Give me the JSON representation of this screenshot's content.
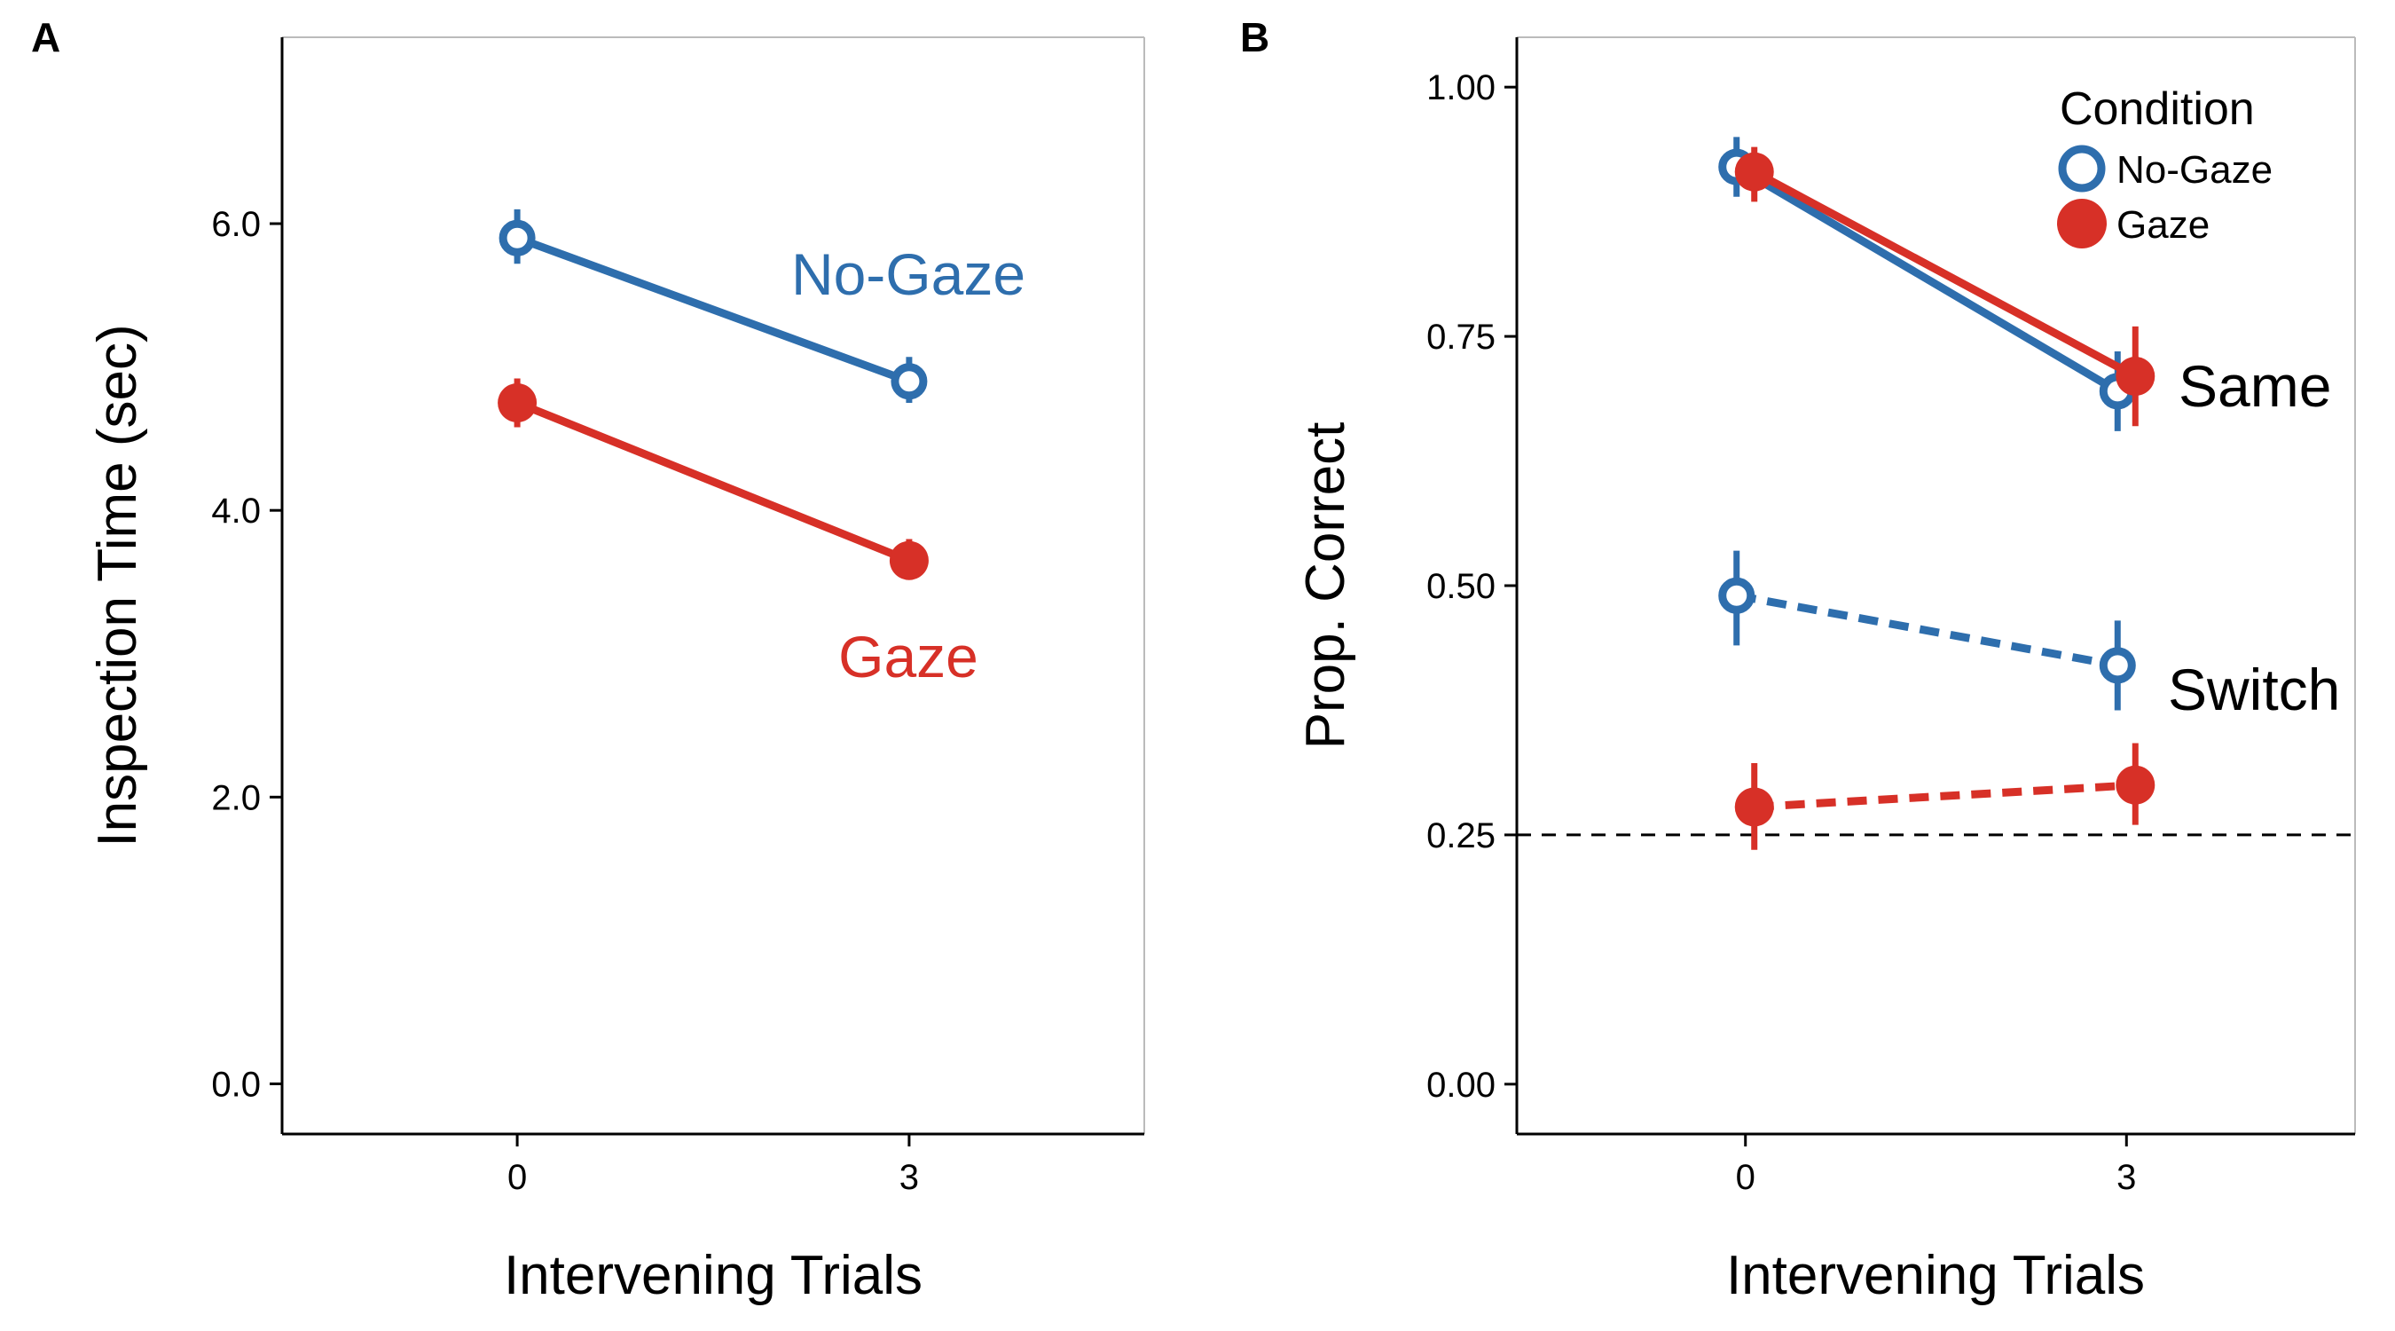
{
  "colors": {
    "no_gaze": "#2e6ead",
    "gaze": "#d73027",
    "axis": "#000000",
    "frame": "#bbbbbb"
  },
  "chart_data": [
    {
      "panel": "A",
      "type": "line",
      "x": [
        0,
        3
      ],
      "x_ticks": [
        "0",
        "3"
      ],
      "xlim": [
        -1.8,
        4.8
      ],
      "ylim": [
        -0.35,
        7.3
      ],
      "y_ticks": [
        "0.0",
        "2.0",
        "4.0",
        "6.0"
      ],
      "xlabel": "Intervening Trials",
      "ylabel": "Inspection Time (sec)",
      "grid": false,
      "series": [
        {
          "name": "No-Gaze",
          "color": "#2e6ead",
          "marker": "open-circle",
          "line": "solid",
          "values": [
            5.9,
            4.9
          ],
          "ci": [
            [
              5.72,
              6.1
            ],
            [
              4.75,
              5.07
            ]
          ]
        },
        {
          "name": "Gaze",
          "color": "#d73027",
          "marker": "filled-circle",
          "line": "solid",
          "values": [
            4.75,
            3.65
          ],
          "ci": [
            [
              4.58,
              4.92
            ],
            [
              3.53,
              3.8
            ]
          ]
        }
      ]
    },
    {
      "panel": "B",
      "type": "line",
      "x": [
        0,
        3
      ],
      "x_ticks": [
        "0",
        "3"
      ],
      "xlim": [
        -1.8,
        4.8
      ],
      "ylim": [
        -0.05,
        1.05
      ],
      "y_ticks": [
        "0.00",
        "0.25",
        "0.50",
        "0.75",
        "1.00"
      ],
      "xlabel": "Intervening Trials",
      "ylabel": "Prop. Correct",
      "grid": false,
      "reference_line": {
        "y": 0.25,
        "style": "dashed"
      },
      "legend": {
        "title": "Condition",
        "position": "top-right",
        "items": [
          "No-Gaze",
          "Gaze"
        ]
      },
      "group_labels": [
        "Same",
        "Switch"
      ],
      "series": [
        {
          "name": "No-Gaze",
          "group": "Same",
          "color": "#2e6ead",
          "marker": "open-circle",
          "line": "solid",
          "values": [
            0.92,
            0.695
          ],
          "ci": [
            [
              0.89,
              0.95
            ],
            [
              0.655,
              0.735
            ]
          ]
        },
        {
          "name": "Gaze",
          "group": "Same",
          "color": "#d73027",
          "marker": "filled-circle",
          "line": "solid",
          "values": [
            0.915,
            0.71
          ],
          "ci": [
            [
              0.885,
              0.94
            ],
            [
              0.66,
              0.76
            ]
          ]
        },
        {
          "name": "No-Gaze",
          "group": "Switch",
          "color": "#2e6ead",
          "marker": "open-circle",
          "line": "dashed",
          "values": [
            0.49,
            0.42
          ],
          "ci": [
            [
              0.44,
              0.535
            ],
            [
              0.375,
              0.465
            ]
          ]
        },
        {
          "name": "Gaze",
          "group": "Switch",
          "color": "#d73027",
          "marker": "filled-circle",
          "line": "dashed",
          "values": [
            0.278,
            0.3
          ],
          "ci": [
            [
              0.235,
              0.322
            ],
            [
              0.26,
              0.342
            ]
          ]
        }
      ]
    }
  ]
}
